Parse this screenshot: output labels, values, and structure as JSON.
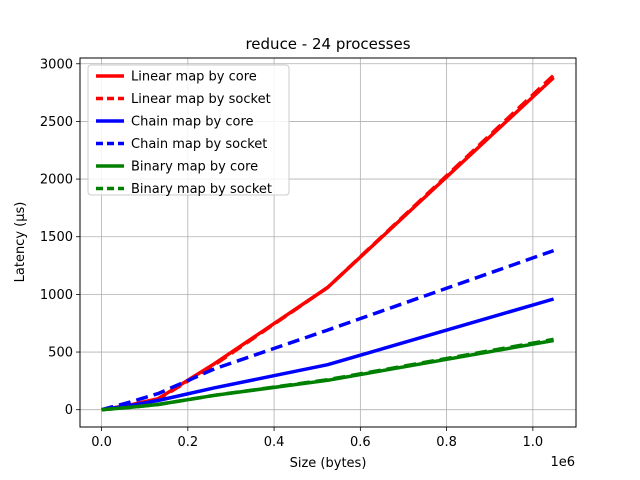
{
  "chart_data": {
    "type": "line",
    "title": "reduce - 24 processes",
    "xlabel": "Size (bytes)",
    "ylabel": "Latency (μs)",
    "x_offset_label": "1e6",
    "xlim": [
      -0.05,
      1.1
    ],
    "ylim": [
      -150,
      3050
    ],
    "xticks": [
      0.0,
      0.2,
      0.4,
      0.6,
      0.8,
      1.0
    ],
    "xtick_labels": [
      "0.0",
      "0.2",
      "0.4",
      "0.6",
      "0.8",
      "1.0"
    ],
    "yticks": [
      0,
      500,
      1000,
      1500,
      2000,
      2500,
      3000
    ],
    "ytick_labels": [
      "0",
      "500",
      "1000",
      "1500",
      "2000",
      "2500",
      "3000"
    ],
    "grid": true,
    "legend_position": "top-left",
    "series": [
      {
        "name": "Linear map by core",
        "color": "#ff0000",
        "dash": "solid",
        "x": [
          0.0,
          0.065,
          0.131,
          0.262,
          0.524,
          1.048
        ],
        "y": [
          0,
          40,
          95,
          400,
          1060,
          2880
        ]
      },
      {
        "name": "Linear map by socket",
        "color": "#ff0000",
        "dash": "dashed",
        "x": [
          0.0,
          0.065,
          0.131,
          0.262,
          0.524,
          1.048
        ],
        "y": [
          0,
          35,
          90,
          390,
          1060,
          2900
        ]
      },
      {
        "name": "Chain map by core",
        "color": "#0000ff",
        "dash": "solid",
        "x": [
          0.0,
          0.065,
          0.131,
          0.262,
          0.524,
          1.048
        ],
        "y": [
          0,
          35,
          80,
          190,
          390,
          960
        ]
      },
      {
        "name": "Chain map by socket",
        "color": "#0000ff",
        "dash": "dashed",
        "x": [
          0.0,
          0.065,
          0.131,
          0.262,
          0.524,
          1.048
        ],
        "y": [
          0,
          65,
          140,
          355,
          690,
          1380
        ]
      },
      {
        "name": "Binary map by core",
        "color": "#008000",
        "dash": "solid",
        "x": [
          0.0,
          0.065,
          0.131,
          0.262,
          0.524,
          1.048
        ],
        "y": [
          0,
          20,
          45,
          125,
          255,
          600
        ]
      },
      {
        "name": "Binary map by socket",
        "color": "#008000",
        "dash": "dashed",
        "x": [
          0.0,
          0.065,
          0.131,
          0.262,
          0.524,
          1.048
        ],
        "y": [
          0,
          20,
          45,
          125,
          260,
          610
        ]
      }
    ]
  }
}
